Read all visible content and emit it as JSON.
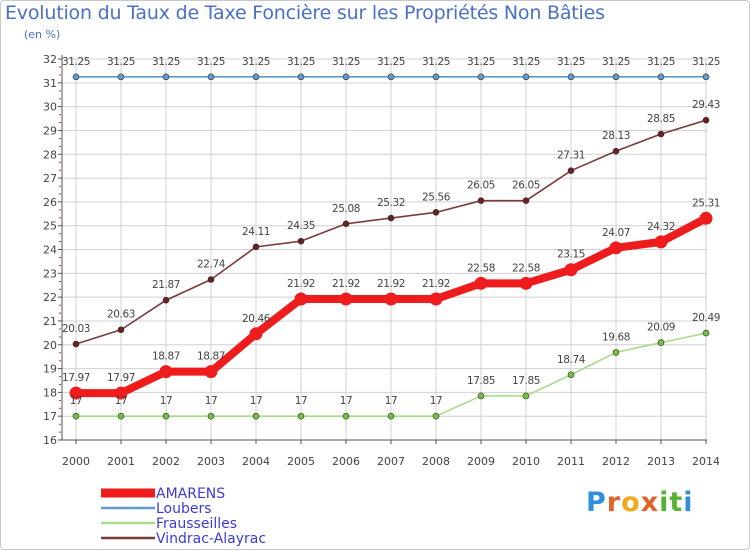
{
  "title": "Evolution du Taux de Taxe Foncière sur les Propriétés Non Bâties",
  "subtitle": "(en %)",
  "brand": {
    "text": "Proxiti",
    "letter_colors": [
      "#2f8fd8",
      "#e0632a",
      "#f0a81c",
      "#e0632a",
      "#56b332",
      "#56b332",
      "#2f8fd8"
    ]
  },
  "colors": {
    "grid": "#d0d0d0",
    "axis": "#555555",
    "minor_tick": "#cc3030",
    "label_text": "#444444",
    "legend_text": "#3b3bd6"
  },
  "chart_data": {
    "type": "line",
    "x": [
      "2000",
      "2001",
      "2002",
      "2003",
      "2004",
      "2005",
      "2006",
      "2007",
      "2008",
      "2009",
      "2010",
      "2011",
      "2012",
      "2013",
      "2014"
    ],
    "ylim": [
      16,
      32
    ],
    "yticks": [
      16,
      17,
      18,
      19,
      20,
      21,
      22,
      23,
      24,
      25,
      26,
      27,
      28,
      29,
      30,
      31,
      32
    ],
    "grid": true,
    "legend_position": "bottom-left",
    "series": [
      {
        "name": "AMARENS",
        "color": "#ee1c1c",
        "highlight": true,
        "values": [
          17.97,
          17.97,
          18.87,
          18.87,
          20.46,
          21.92,
          21.92,
          21.92,
          21.92,
          22.58,
          22.58,
          23.15,
          24.07,
          24.32,
          25.31
        ],
        "labels": [
          "17.97",
          "17.97",
          "18.87",
          "18.87",
          "20.46",
          "21.92",
          "21.92",
          "21.92",
          "21.92",
          "22.58",
          "22.58",
          "23.15",
          "24.07",
          "24.32",
          "25.31"
        ]
      },
      {
        "name": "Loubers",
        "color": "#5f9ac9",
        "highlight": false,
        "values": [
          31.25,
          31.25,
          31.25,
          31.25,
          31.25,
          31.25,
          31.25,
          31.25,
          31.25,
          31.25,
          31.25,
          31.25,
          31.25,
          31.25,
          31.25
        ],
        "labels": [
          "31.25",
          "31.25",
          "31.25",
          "31.25",
          "31.25",
          "31.25",
          "31.25",
          "31.25",
          "31.25",
          "31.25",
          "31.25",
          "31.25",
          "31.25",
          "31.25",
          "31.25"
        ]
      },
      {
        "name": "Frausseilles",
        "color": "#a8dc88",
        "marker_color": "#6fc23c",
        "highlight": false,
        "values": [
          17,
          17,
          17,
          17,
          17,
          17,
          17,
          17,
          17,
          17.85,
          17.85,
          18.74,
          19.68,
          20.09,
          20.49
        ],
        "labels": [
          "17",
          "17",
          "17",
          "17",
          "17",
          "17",
          "17",
          "17",
          "17",
          "17.85",
          "17.85",
          "18.74",
          "19.68",
          "20.09",
          "20.49"
        ]
      },
      {
        "name": "Vindrac-Alayrac",
        "color": "#7a3b3b",
        "marker_color": "#6a2020",
        "highlight": false,
        "values": [
          20.03,
          20.63,
          21.87,
          22.74,
          24.11,
          24.35,
          25.08,
          25.32,
          25.56,
          26.05,
          26.05,
          27.31,
          28.13,
          28.85,
          29.43
        ],
        "labels": [
          "20.03",
          "20.63",
          "21.87",
          "22.74",
          "24.11",
          "24.35",
          "25.08",
          "25.32",
          "25.56",
          "26.05",
          "26.05",
          "27.31",
          "28.13",
          "28.85",
          "29.43"
        ]
      }
    ]
  }
}
